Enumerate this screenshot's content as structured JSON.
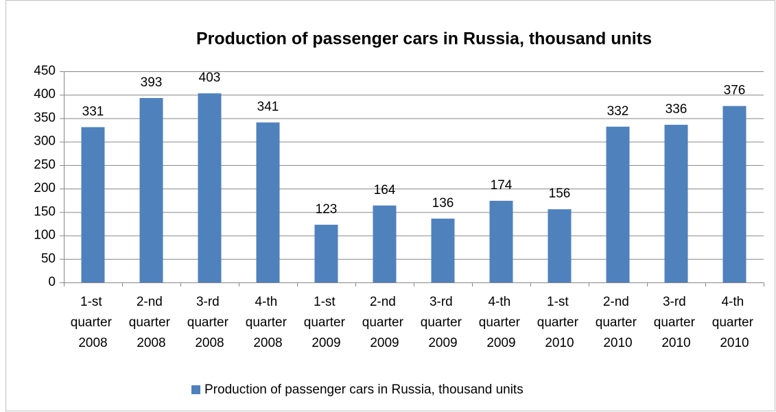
{
  "chart_data": {
    "type": "bar",
    "title": "Production of passenger cars in Russia, thousand units",
    "categories": [
      "1-st quarter 2008",
      "2-nd quarter 2008",
      "3-rd quarter 2008",
      "4-th quarter 2008",
      "1-st quarter 2009",
      "2-nd quarter 2009",
      "3-rd quarter 2009",
      "4-th quarter 2009",
      "1-st quarter 2010",
      "2-nd quarter 2010",
      "3-rd quarter 2010",
      "4-th quarter 2010"
    ],
    "series": [
      {
        "name": "Production of passenger cars in Russia, thousand units",
        "color": "#4f81bd",
        "values": [
          331,
          393,
          403,
          341,
          123,
          164,
          136,
          174,
          156,
          332,
          336,
          376
        ]
      }
    ],
    "ylim": [
      0,
      450
    ],
    "yticks": [
      0,
      50,
      100,
      150,
      200,
      250,
      300,
      350,
      400,
      450
    ],
    "grid": true,
    "legend": "bottom"
  }
}
